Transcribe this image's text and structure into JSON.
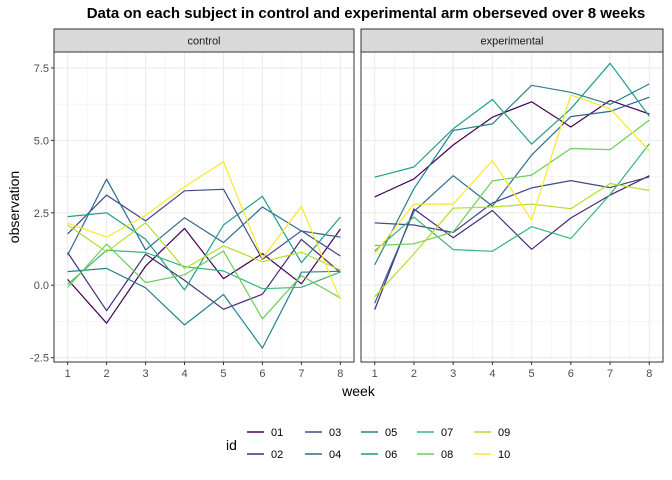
{
  "chart_data": {
    "type": "line",
    "title": "Data on each subject in control and experimental arm oberseved over 8 weeks",
    "xlabel": "week",
    "ylabel": "observation",
    "x": [
      1,
      2,
      3,
      4,
      5,
      6,
      7,
      8
    ],
    "xticks": [
      "1",
      "2",
      "3",
      "4",
      "5",
      "6",
      "7",
      "8"
    ],
    "xlim": [
      0.65,
      8.35
    ],
    "ylim": [
      -2.65,
      8.05
    ],
    "yticks": [
      -2.5,
      0.0,
      2.5,
      5.0,
      7.5
    ],
    "yticklabels": [
      "-2.5",
      "0.0",
      "2.5",
      "5.0",
      "7.5"
    ],
    "grid": true,
    "legend": {
      "title": "id",
      "placement": "bottom",
      "entries": [
        "01",
        "02",
        "03",
        "04",
        "05",
        "06",
        "07",
        "08",
        "09",
        "10"
      ]
    },
    "colors": {
      "01": "#440154",
      "02": "#482878",
      "03": "#3E4A89",
      "04": "#31688E",
      "05": "#26828E",
      "06": "#1F9E89",
      "07": "#35B779",
      "08": "#6DCD59",
      "09": "#B4DE2C",
      "10": "#FDE725"
    },
    "panels": [
      {
        "label": "control",
        "series": [
          {
            "id": "01",
            "values": [
              0.2,
              -1.31,
              0.66,
              1.96,
              0.23,
              1.09,
              0.05,
              1.94
            ]
          },
          {
            "id": "02",
            "values": [
              1.13,
              -0.88,
              1.07,
              0.17,
              -0.83,
              -0.31,
              1.58,
              0.44
            ]
          },
          {
            "id": "03",
            "values": [
              1.77,
              3.11,
              2.22,
              3.26,
              3.31,
              0.89,
              1.88,
              1.01
            ]
          },
          {
            "id": "04",
            "values": [
              1.04,
              3.66,
              1.22,
              2.33,
              1.47,
              2.7,
              1.87,
              1.66
            ]
          },
          {
            "id": "05",
            "values": [
              0.47,
              0.58,
              -0.09,
              -1.37,
              -0.32,
              -2.17,
              0.45,
              0.48
            ]
          },
          {
            "id": "06",
            "values": [
              2.37,
              2.5,
              1.59,
              -0.16,
              2.08,
              3.07,
              0.78,
              2.35
            ]
          },
          {
            "id": "07",
            "values": [
              0.03,
              1.21,
              1.13,
              0.64,
              0.49,
              -0.12,
              -0.07,
              0.46
            ]
          },
          {
            "id": "08",
            "values": [
              -0.08,
              1.42,
              0.09,
              0.36,
              1.18,
              -1.16,
              0.33,
              -0.44
            ]
          },
          {
            "id": "09",
            "values": [
              2.08,
              1.15,
              2.16,
              0.57,
              1.36,
              0.81,
              1.14,
              0.52
            ]
          },
          {
            "id": "10",
            "values": [
              2.14,
              1.66,
              2.41,
              3.4,
              4.26,
              0.92,
              2.72,
              -0.5
            ]
          }
        ]
      },
      {
        "label": "experimental",
        "series": [
          {
            "id": "01",
            "values": [
              3.05,
              3.67,
              4.84,
              5.8,
              6.33,
              5.46,
              6.38,
              5.91
            ]
          },
          {
            "id": "02",
            "values": [
              -0.84,
              2.63,
              1.64,
              2.58,
              1.24,
              2.32,
              3.11,
              3.78
            ]
          },
          {
            "id": "03",
            "values": [
              2.15,
              2.08,
              1.82,
              2.84,
              3.36,
              3.61,
              3.37,
              3.74
            ]
          },
          {
            "id": "04",
            "values": [
              -0.62,
              2.54,
              3.78,
              2.73,
              4.49,
              5.82,
              6.0,
              6.49
            ]
          },
          {
            "id": "05",
            "values": [
              0.7,
              3.33,
              5.34,
              5.57,
              6.9,
              6.66,
              6.24,
              6.95
            ]
          },
          {
            "id": "06",
            "values": [
              3.73,
              4.08,
              5.4,
              6.41,
              4.87,
              6.09,
              7.66,
              5.83
            ]
          },
          {
            "id": "07",
            "values": [
              1.18,
              2.35,
              1.23,
              1.17,
              2.02,
              1.61,
              3.13,
              4.88
            ]
          },
          {
            "id": "08",
            "values": [
              1.37,
              1.43,
              1.84,
              3.6,
              3.8,
              4.72,
              4.68,
              5.7
            ]
          },
          {
            "id": "09",
            "values": [
              -0.4,
              1.08,
              2.66,
              2.7,
              2.8,
              2.64,
              3.51,
              3.27
            ]
          },
          {
            "id": "10",
            "values": [
              1.09,
              2.8,
              2.8,
              4.3,
              2.25,
              6.57,
              6.09,
              4.64
            ]
          }
        ]
      }
    ]
  }
}
